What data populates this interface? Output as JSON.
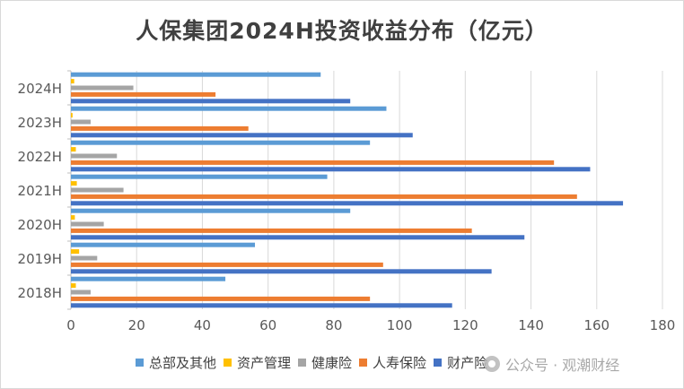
{
  "chart_data": {
    "type": "bar",
    "orientation": "horizontal",
    "title": "人保集团2024H投资收益分布（亿元）",
    "categories": [
      "2024H",
      "2023H",
      "2022H",
      "2021H",
      "2020H",
      "2019H",
      "2018H"
    ],
    "series": [
      {
        "name": "总部及其他",
        "color": "#5b9bd5",
        "values": [
          76,
          96,
          91,
          78,
          85,
          56,
          47
        ]
      },
      {
        "name": "资产管理",
        "color": "#ffc000",
        "values": [
          1,
          0.5,
          1.5,
          1.8,
          1.2,
          2.5,
          1.5
        ]
      },
      {
        "name": "健康险",
        "color": "#a5a5a5",
        "values": [
          19,
          6,
          14,
          16,
          10,
          8,
          6
        ]
      },
      {
        "name": "人寿保险",
        "color": "#ed7d31",
        "values": [
          44,
          54,
          147,
          154,
          122,
          95,
          91
        ]
      },
      {
        "name": "财产险",
        "color": "#4472c4",
        "values": [
          85,
          104,
          158,
          168,
          138,
          128,
          116
        ]
      }
    ],
    "xlim": [
      0,
      180
    ],
    "xticks": [
      "0",
      "20",
      "40",
      "60",
      "80",
      "100",
      "120",
      "140",
      "160",
      "180"
    ],
    "grid": true,
    "legend_position": "bottom"
  },
  "watermark": {
    "text": "公众号 · 观潮财经",
    "icon": "wechat-icon"
  }
}
